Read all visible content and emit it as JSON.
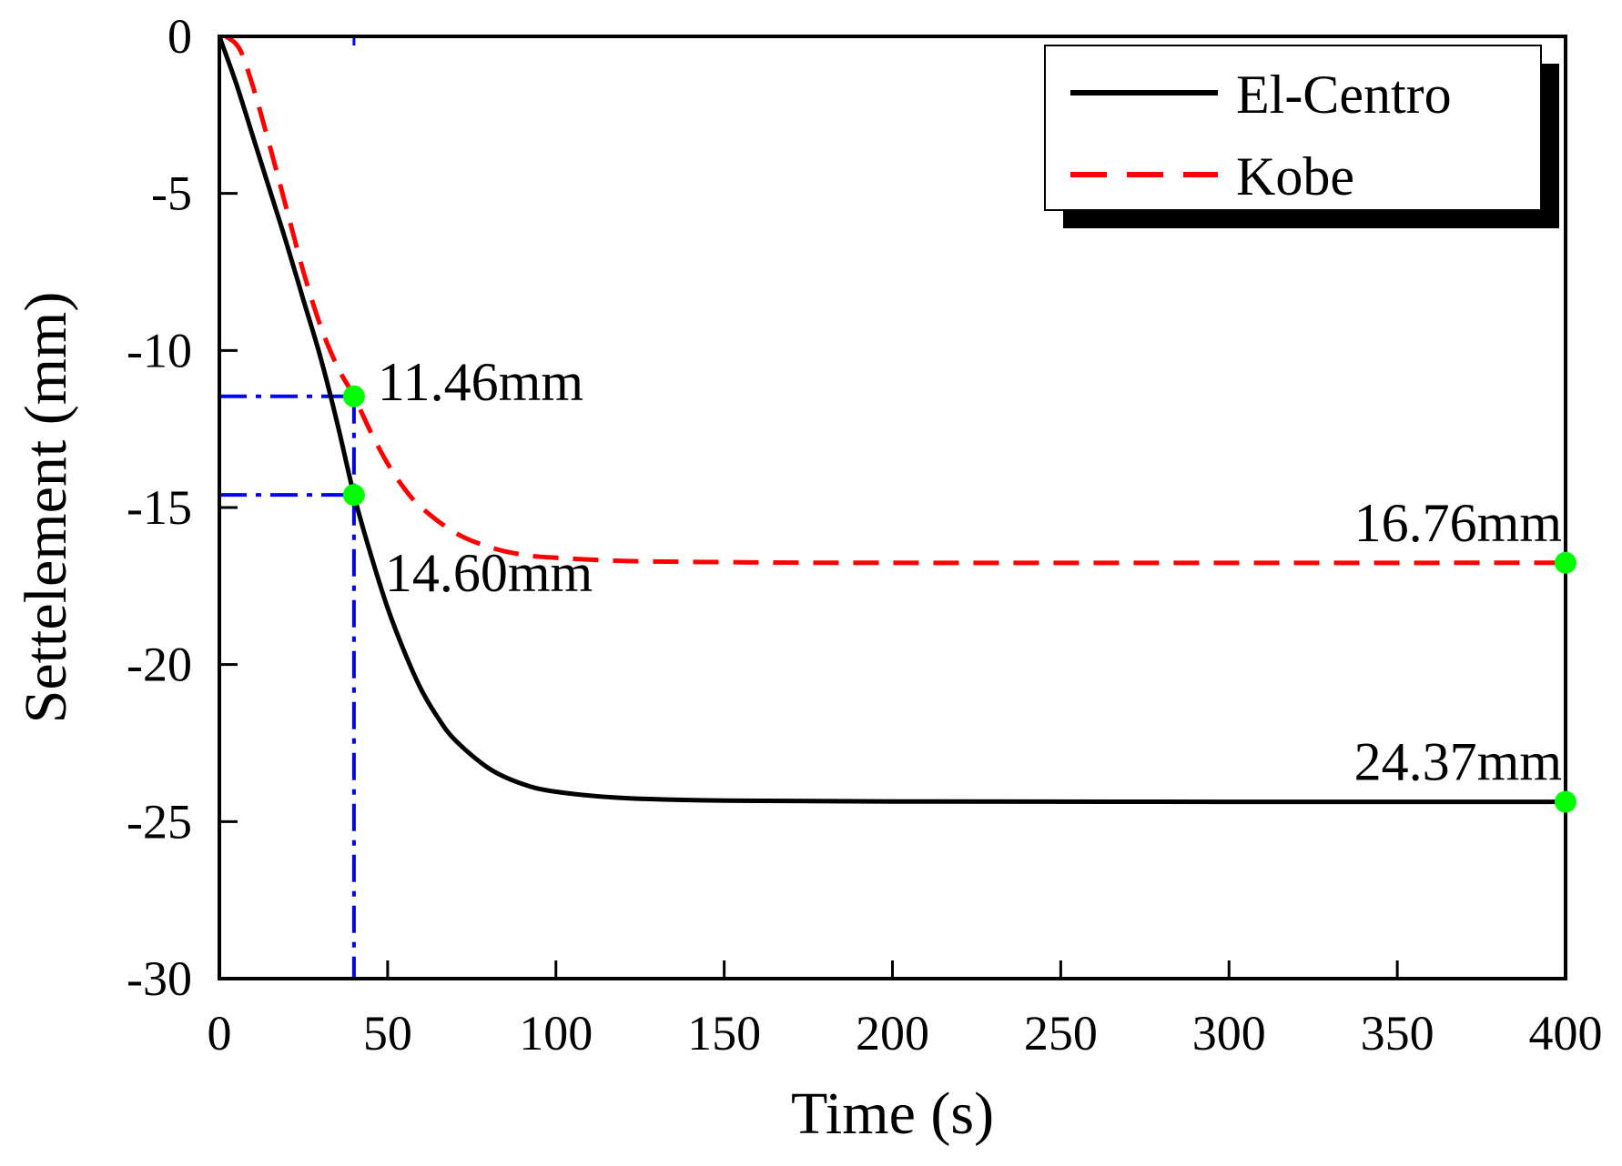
{
  "chart_data": {
    "type": "line",
    "xlabel": "Time (s)",
    "ylabel": "Settelement (mm)",
    "xlim": [
      0,
      400
    ],
    "ylim": [
      -30,
      0
    ],
    "xticks": [
      0,
      50,
      100,
      150,
      200,
      250,
      300,
      350,
      400
    ],
    "yticks": [
      0,
      -5,
      -10,
      -15,
      -20,
      -25,
      -30
    ],
    "grid": false,
    "legend_position": "top-right",
    "series": [
      {
        "name": "El-Centro",
        "color": "#000000",
        "style": "solid",
        "points": [
          [
            0,
            0
          ],
          [
            5,
            -1.5
          ],
          [
            10,
            -3.2
          ],
          [
            15,
            -4.9
          ],
          [
            20,
            -6.6
          ],
          [
            25,
            -8.4
          ],
          [
            30,
            -10.2
          ],
          [
            35,
            -12.3
          ],
          [
            40,
            -14.6
          ],
          [
            45,
            -16.5
          ],
          [
            50,
            -18.2
          ],
          [
            55,
            -19.6
          ],
          [
            60,
            -20.8
          ],
          [
            65,
            -21.7
          ],
          [
            70,
            -22.4
          ],
          [
            80,
            -23.3
          ],
          [
            90,
            -23.8
          ],
          [
            100,
            -24.05
          ],
          [
            120,
            -24.25
          ],
          [
            150,
            -24.33
          ],
          [
            200,
            -24.36
          ],
          [
            300,
            -24.37
          ],
          [
            400,
            -24.37
          ]
        ]
      },
      {
        "name": "Kobe",
        "color": "#ff0000",
        "style": "dashed",
        "points": [
          [
            2,
            0
          ],
          [
            6,
            -0.4
          ],
          [
            10,
            -1.6
          ],
          [
            15,
            -3.5
          ],
          [
            20,
            -5.5
          ],
          [
            25,
            -7.5
          ],
          [
            30,
            -9.2
          ],
          [
            35,
            -10.5
          ],
          [
            40,
            -11.46
          ],
          [
            45,
            -12.6
          ],
          [
            50,
            -13.6
          ],
          [
            55,
            -14.4
          ],
          [
            60,
            -15.0
          ],
          [
            70,
            -15.8
          ],
          [
            80,
            -16.25
          ],
          [
            90,
            -16.5
          ],
          [
            100,
            -16.6
          ],
          [
            120,
            -16.7
          ],
          [
            150,
            -16.74
          ],
          [
            200,
            -16.76
          ],
          [
            400,
            -16.76
          ]
        ]
      }
    ],
    "markers": [
      {
        "x": 40,
        "y": -11.46,
        "color": "#00ff00"
      },
      {
        "x": 40,
        "y": -14.6,
        "color": "#00ff00"
      },
      {
        "x": 400,
        "y": -16.76,
        "color": "#00ff00"
      },
      {
        "x": 400,
        "y": -24.37,
        "color": "#00ff00"
      }
    ],
    "guides": {
      "color": "#0000ff",
      "style": "dash-dot",
      "x": 40,
      "y_values": [
        -11.46,
        -14.6
      ]
    },
    "annotations": [
      {
        "text": "11.46mm",
        "x": 40,
        "y": -11.46,
        "placement": "right"
      },
      {
        "text": "14.60mm",
        "x": 40,
        "y": -14.6,
        "placement": "below-right"
      },
      {
        "text": "16.76mm",
        "x": 400,
        "y": -16.76,
        "placement": "above-left"
      },
      {
        "text": "24.37mm",
        "x": 400,
        "y": -24.37,
        "placement": "above-left"
      }
    ]
  }
}
